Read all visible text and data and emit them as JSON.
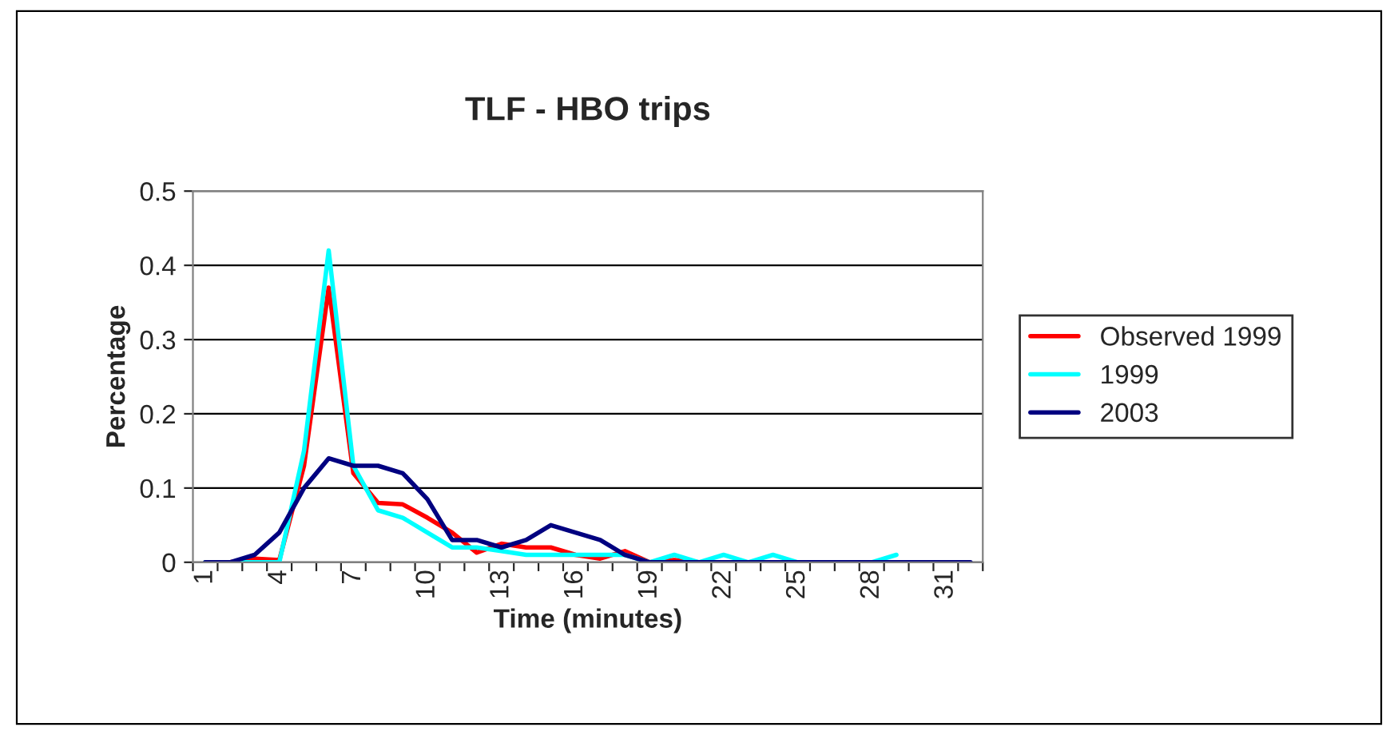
{
  "chart_data": {
    "type": "line",
    "title": "TLF - HBO trips",
    "xlabel": "Time (minutes)",
    "ylabel": "Percentage",
    "categories": [
      "1",
      null,
      null,
      "4",
      null,
      null,
      "7",
      null,
      null,
      "10",
      null,
      null,
      "13",
      null,
      null,
      "16",
      null,
      null,
      "19",
      null,
      null,
      "22",
      null,
      null,
      "25",
      null,
      null,
      "28",
      null,
      null,
      "31",
      null
    ],
    "series": [
      {
        "name": "Observed 1999",
        "color": "#ff0000",
        "values": [
          0,
          0,
          0.005,
          0.003,
          0.13,
          0.37,
          0.12,
          0.08,
          0.078,
          0.06,
          0.04,
          0.013,
          0.025,
          0.02,
          0.02,
          0.01,
          0.005,
          0.015,
          0,
          0.003,
          0,
          null,
          null,
          null,
          null,
          null,
          null,
          null,
          null,
          null,
          null,
          null
        ]
      },
      {
        "name": "1999",
        "color": "#00ffff",
        "values": [
          0,
          0,
          0,
          0,
          0.15,
          0.42,
          0.13,
          0.07,
          0.06,
          0.04,
          0.02,
          0.02,
          0.015,
          0.01,
          0.01,
          0.01,
          0.01,
          0.01,
          0,
          0.01,
          0,
          0.01,
          0,
          0.01,
          0,
          0,
          0,
          0,
          0.01,
          null,
          null,
          null
        ]
      },
      {
        "name": "2003",
        "color": "#000080",
        "values": [
          0,
          0,
          0.01,
          0.04,
          0.1,
          0.14,
          0.13,
          0.13,
          0.12,
          0.085,
          0.03,
          0.03,
          0.02,
          0.03,
          0.05,
          0.04,
          0.03,
          0.01,
          0,
          0,
          0,
          0,
          0,
          0,
          0,
          0,
          0,
          0,
          0,
          0,
          0,
          0
        ]
      }
    ],
    "ylim": [
      0,
      0.5
    ],
    "yticks": [
      0,
      0.1,
      0.2,
      0.3,
      0.4,
      0.5
    ],
    "grid": "y",
    "legend": "right",
    "marker": "none",
    "line_style": "solid"
  }
}
